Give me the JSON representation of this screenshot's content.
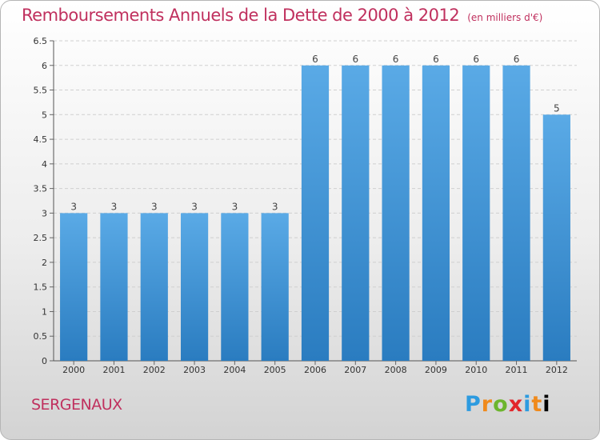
{
  "header": {
    "title": "Remboursements Annuels de la Dette de 2000 à 2012",
    "unit": "(en milliers d'€)"
  },
  "footer": {
    "commune": "SERGENAUX",
    "logo_letters": [
      "P",
      "r",
      "o",
      "x",
      "i",
      "t",
      "i"
    ]
  },
  "colors": {
    "title": "#c0305e",
    "bar_light": "#5aaae6",
    "bar_dark": "#2a7cc0"
  },
  "chart_data": {
    "type": "bar",
    "title": "Remboursements Annuels de la Dette de 2000 à 2012",
    "xlabel": "",
    "ylabel": "",
    "categories": [
      "2000",
      "2001",
      "2002",
      "2003",
      "2004",
      "2005",
      "2006",
      "2007",
      "2008",
      "2009",
      "2010",
      "2011",
      "2012"
    ],
    "values": [
      3,
      3,
      3,
      3,
      3,
      3,
      6,
      6,
      6,
      6,
      6,
      6,
      5
    ],
    "data_labels": [
      "3",
      "3",
      "3",
      "3",
      "3",
      "3",
      "6",
      "6",
      "6",
      "6",
      "6",
      "6",
      "5"
    ],
    "ylim": [
      0,
      6.5
    ],
    "yticks": [
      0,
      0.5,
      1,
      1.5,
      2,
      2.5,
      3,
      3.5,
      4,
      4.5,
      5,
      5.5,
      6,
      6.5
    ],
    "ytick_labels": [
      "0",
      "0.5",
      "1",
      "1.5",
      "2",
      "2.5",
      "3",
      "3.5",
      "4",
      "4.5",
      "5",
      "5.5",
      "6",
      "6.5"
    ],
    "grid": true,
    "legend": "none"
  }
}
